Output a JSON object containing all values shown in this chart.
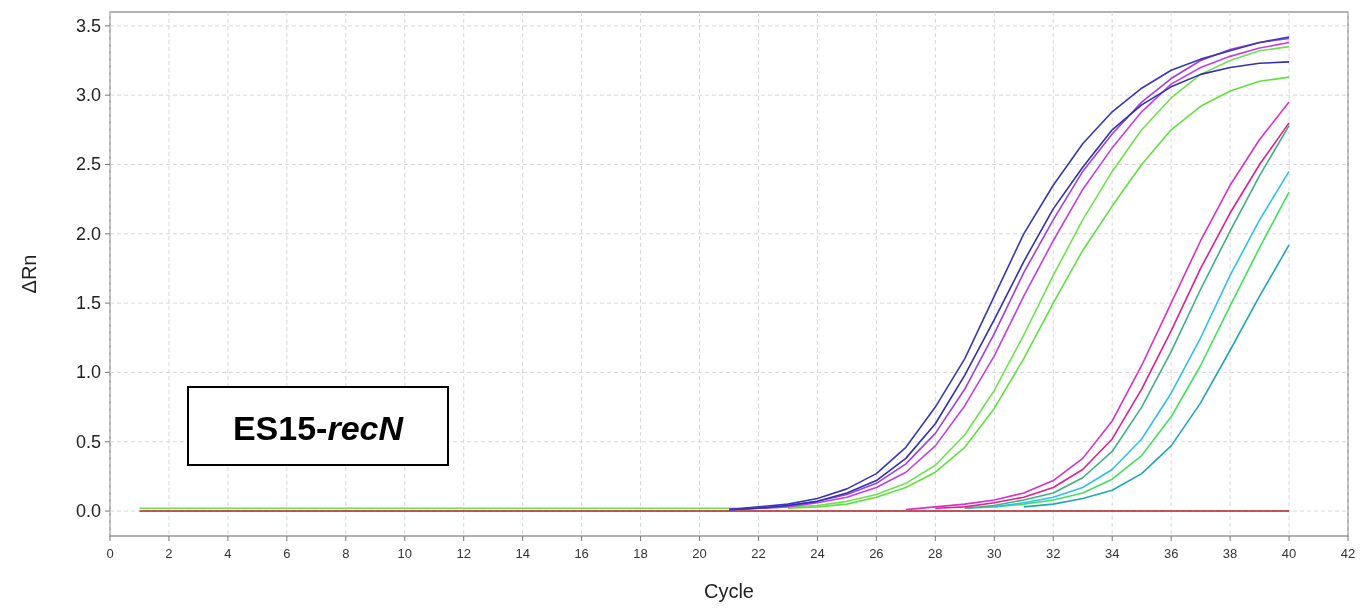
{
  "chart_data": {
    "type": "line",
    "xlabel": "Cycle",
    "ylabel": "ΔRn",
    "annotations": [
      "ES15-recN"
    ],
    "x": [
      1,
      2,
      3,
      4,
      5,
      6,
      7,
      8,
      9,
      10,
      11,
      12,
      13,
      14,
      15,
      16,
      17,
      18,
      19,
      20,
      21,
      22,
      23,
      24,
      25,
      26,
      27,
      28,
      29,
      30,
      31,
      32,
      33,
      34,
      35,
      36,
      37,
      38,
      39,
      40
    ],
    "xlim": [
      0,
      42
    ],
    "xticks": [
      0,
      2,
      4,
      6,
      8,
      10,
      12,
      14,
      16,
      18,
      20,
      22,
      24,
      26,
      28,
      30,
      32,
      34,
      36,
      38,
      40,
      42
    ],
    "ylim": [
      -0.18,
      3.6
    ],
    "yticks": [
      {
        "value": 0,
        "label": "0.0"
      },
      0.5,
      {
        "value": 1,
        "label": "1.0"
      },
      1.5,
      {
        "value": 2,
        "label": "2.0"
      },
      2.5,
      {
        "value": 3,
        "label": "3.0"
      },
      3.5
    ],
    "grid": true,
    "marker": "none",
    "line_style": "solid",
    "series": [
      {
        "color": "#b02020",
        "values": [
          0,
          0,
          0,
          0,
          0,
          0,
          0,
          0,
          0,
          0,
          0,
          0,
          0,
          0,
          0,
          0,
          0,
          0,
          0,
          0,
          0,
          0,
          0,
          0,
          0,
          0,
          0,
          0,
          0,
          0,
          0,
          0,
          0,
          0,
          0,
          0,
          0,
          0,
          0,
          0
        ]
      },
      {
        "color": "#20a8b0",
        "values": [
          null,
          null,
          null,
          null,
          null,
          null,
          null,
          null,
          null,
          null,
          null,
          null,
          null,
          null,
          null,
          null,
          null,
          null,
          null,
          null,
          null,
          null,
          null,
          null,
          null,
          null,
          null,
          null,
          null,
          null,
          0.03,
          0.05,
          0.09,
          0.15,
          0.27,
          0.47,
          0.78,
          1.16,
          1.55,
          1.92
        ]
      },
      {
        "color": "#40e060",
        "values": [
          null,
          null,
          null,
          null,
          null,
          null,
          null,
          null,
          null,
          null,
          null,
          null,
          null,
          null,
          null,
          null,
          null,
          null,
          null,
          null,
          null,
          null,
          null,
          null,
          null,
          null,
          null,
          null,
          null,
          0.03,
          0.05,
          0.08,
          0.13,
          0.23,
          0.4,
          0.68,
          1.05,
          1.48,
          1.9,
          2.3
        ]
      },
      {
        "color": "#30c0e8",
        "values": [
          null,
          null,
          null,
          null,
          null,
          null,
          null,
          null,
          null,
          null,
          null,
          null,
          null,
          null,
          null,
          null,
          null,
          null,
          null,
          null,
          null,
          null,
          null,
          null,
          null,
          null,
          null,
          null,
          0.02,
          0.03,
          0.06,
          0.1,
          0.17,
          0.3,
          0.52,
          0.85,
          1.25,
          1.7,
          2.1,
          2.45
        ]
      },
      {
        "color": "#40b080",
        "values": [
          null,
          null,
          null,
          null,
          null,
          null,
          null,
          null,
          null,
          null,
          null,
          null,
          null,
          null,
          null,
          null,
          null,
          null,
          null,
          null,
          null,
          null,
          null,
          null,
          null,
          null,
          null,
          null,
          0.02,
          0.04,
          0.08,
          0.13,
          0.24,
          0.43,
          0.75,
          1.15,
          1.6,
          2.02,
          2.42,
          2.78
        ]
      },
      {
        "color": "#e02090",
        "values": [
          null,
          null,
          null,
          null,
          null,
          null,
          null,
          null,
          null,
          null,
          null,
          null,
          null,
          null,
          null,
          null,
          null,
          null,
          null,
          null,
          null,
          null,
          null,
          null,
          null,
          null,
          null,
          0.02,
          0.03,
          0.06,
          0.1,
          0.17,
          0.3,
          0.52,
          0.88,
          1.3,
          1.75,
          2.15,
          2.5,
          2.8
        ]
      },
      {
        "color": "#d830c8",
        "values": [
          null,
          null,
          null,
          null,
          null,
          null,
          null,
          null,
          null,
          null,
          null,
          null,
          null,
          null,
          null,
          null,
          null,
          null,
          null,
          null,
          null,
          null,
          null,
          null,
          null,
          null,
          0.01,
          0.03,
          0.05,
          0.08,
          0.13,
          0.22,
          0.38,
          0.65,
          1.05,
          1.5,
          1.95,
          2.35,
          2.68,
          2.95
        ]
      },
      {
        "color": "#60e040",
        "values": [
          null,
          null,
          null,
          null,
          null,
          null,
          null,
          null,
          null,
          null,
          null,
          null,
          null,
          null,
          null,
          null,
          null,
          null,
          null,
          null,
          null,
          null,
          0.02,
          0.03,
          0.05,
          0.1,
          0.17,
          0.28,
          0.46,
          0.74,
          1.1,
          1.5,
          1.88,
          2.2,
          2.5,
          2.75,
          2.92,
          3.03,
          3.1,
          3.13
        ]
      },
      {
        "color": "#70e050",
        "values": [
          0.02,
          0.02,
          0.02,
          0.02,
          0.02,
          0.02,
          0.02,
          0.02,
          0.02,
          0.02,
          0.02,
          0.02,
          0.02,
          0.02,
          0.02,
          0.02,
          0.02,
          0.02,
          0.02,
          0.02,
          0.02,
          0.02,
          0.03,
          0.04,
          0.07,
          0.12,
          0.2,
          0.33,
          0.55,
          0.87,
          1.27,
          1.7,
          2.1,
          2.45,
          2.75,
          2.98,
          3.15,
          3.25,
          3.32,
          3.35
        ]
      },
      {
        "color": "#c040e8",
        "values": [
          null,
          null,
          null,
          null,
          null,
          null,
          null,
          null,
          null,
          null,
          null,
          null,
          null,
          null,
          null,
          null,
          null,
          null,
          null,
          null,
          0.01,
          0.02,
          0.03,
          0.06,
          0.1,
          0.17,
          0.28,
          0.47,
          0.76,
          1.12,
          1.55,
          1.95,
          2.32,
          2.62,
          2.88,
          3.08,
          3.2,
          3.28,
          3.34,
          3.38
        ]
      },
      {
        "color": "#a040e0",
        "values": [
          null,
          null,
          null,
          null,
          null,
          null,
          null,
          null,
          null,
          null,
          null,
          null,
          null,
          null,
          null,
          null,
          null,
          null,
          null,
          null,
          0.01,
          0.02,
          0.04,
          0.07,
          0.12,
          0.2,
          0.34,
          0.56,
          0.88,
          1.28,
          1.72,
          2.1,
          2.45,
          2.72,
          2.95,
          3.12,
          3.25,
          3.33,
          3.38,
          3.41
        ]
      },
      {
        "color": "#3030b0",
        "values": [
          null,
          null,
          null,
          null,
          null,
          null,
          null,
          null,
          null,
          null,
          null,
          null,
          null,
          null,
          null,
          null,
          null,
          null,
          null,
          null,
          0.01,
          0.02,
          0.04,
          0.07,
          0.13,
          0.22,
          0.38,
          0.63,
          0.98,
          1.38,
          1.8,
          2.18,
          2.48,
          2.75,
          2.93,
          3.06,
          3.15,
          3.2,
          3.23,
          3.24
        ]
      },
      {
        "color": "#3838b8",
        "values": [
          null,
          null,
          null,
          null,
          null,
          null,
          null,
          null,
          null,
          null,
          null,
          null,
          null,
          null,
          null,
          null,
          null,
          null,
          null,
          null,
          0.01,
          0.03,
          0.05,
          0.09,
          0.16,
          0.27,
          0.46,
          0.75,
          1.1,
          1.55,
          2.0,
          2.35,
          2.65,
          2.88,
          3.05,
          3.18,
          3.26,
          3.32,
          3.38,
          3.42
        ]
      }
    ]
  }
}
